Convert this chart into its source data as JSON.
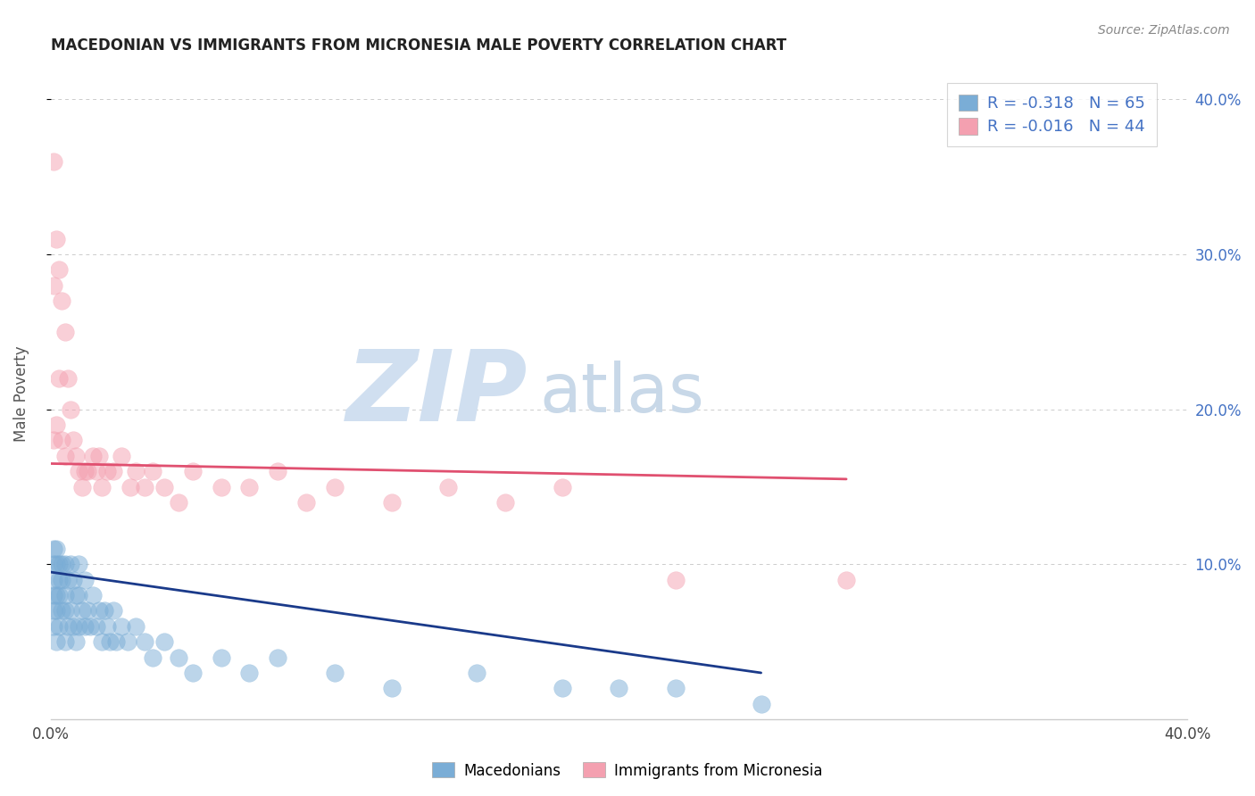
{
  "title": "MACEDONIAN VS IMMIGRANTS FROM MICRONESIA MALE POVERTY CORRELATION CHART",
  "source": "Source: ZipAtlas.com",
  "ylabel": "Male Poverty",
  "legend_label1": "Macedonians",
  "legend_label2": "Immigrants from Micronesia",
  "r1": -0.318,
  "n1": 65,
  "r2": -0.016,
  "n2": 44,
  "color_macedonian": "#7aadd6",
  "color_micronesia": "#f4a0b0",
  "color_macedonian_line": "#1a3a8a",
  "color_micronesia_line": "#e05070",
  "xlim": [
    0.0,
    0.4
  ],
  "ylim": [
    0.0,
    0.42
  ],
  "yticks": [
    0.1,
    0.2,
    0.3,
    0.4
  ],
  "ytick_labels": [
    "10.0%",
    "20.0%",
    "30.0%",
    "40.0%"
  ],
  "background_color": "#ffffff",
  "macedonian_x": [
    0.001,
    0.001,
    0.001,
    0.001,
    0.001,
    0.001,
    0.002,
    0.002,
    0.002,
    0.002,
    0.002,
    0.003,
    0.003,
    0.003,
    0.003,
    0.004,
    0.004,
    0.004,
    0.005,
    0.005,
    0.005,
    0.005,
    0.006,
    0.006,
    0.007,
    0.007,
    0.008,
    0.008,
    0.009,
    0.009,
    0.01,
    0.01,
    0.01,
    0.011,
    0.012,
    0.012,
    0.013,
    0.014,
    0.015,
    0.016,
    0.017,
    0.018,
    0.019,
    0.02,
    0.021,
    0.022,
    0.023,
    0.025,
    0.027,
    0.03,
    0.033,
    0.036,
    0.04,
    0.045,
    0.05,
    0.06,
    0.07,
    0.08,
    0.1,
    0.12,
    0.15,
    0.18,
    0.2,
    0.22,
    0.25
  ],
  "macedonian_y": [
    0.06,
    0.07,
    0.08,
    0.09,
    0.1,
    0.11,
    0.05,
    0.07,
    0.08,
    0.1,
    0.11,
    0.06,
    0.08,
    0.09,
    0.1,
    0.07,
    0.09,
    0.1,
    0.05,
    0.07,
    0.08,
    0.1,
    0.06,
    0.09,
    0.07,
    0.1,
    0.06,
    0.09,
    0.05,
    0.08,
    0.06,
    0.08,
    0.1,
    0.07,
    0.06,
    0.09,
    0.07,
    0.06,
    0.08,
    0.06,
    0.07,
    0.05,
    0.07,
    0.06,
    0.05,
    0.07,
    0.05,
    0.06,
    0.05,
    0.06,
    0.05,
    0.04,
    0.05,
    0.04,
    0.03,
    0.04,
    0.03,
    0.04,
    0.03,
    0.02,
    0.03,
    0.02,
    0.02,
    0.02,
    0.01
  ],
  "micronesia_x": [
    0.001,
    0.001,
    0.001,
    0.002,
    0.002,
    0.003,
    0.003,
    0.004,
    0.004,
    0.005,
    0.005,
    0.006,
    0.007,
    0.008,
    0.009,
    0.01,
    0.011,
    0.012,
    0.013,
    0.015,
    0.016,
    0.017,
    0.018,
    0.02,
    0.022,
    0.025,
    0.028,
    0.03,
    0.033,
    0.036,
    0.04,
    0.045,
    0.05,
    0.06,
    0.07,
    0.08,
    0.09,
    0.1,
    0.12,
    0.14,
    0.16,
    0.18,
    0.22,
    0.28
  ],
  "micronesia_y": [
    0.36,
    0.28,
    0.18,
    0.31,
    0.19,
    0.29,
    0.22,
    0.27,
    0.18,
    0.25,
    0.17,
    0.22,
    0.2,
    0.18,
    0.17,
    0.16,
    0.15,
    0.16,
    0.16,
    0.17,
    0.16,
    0.17,
    0.15,
    0.16,
    0.16,
    0.17,
    0.15,
    0.16,
    0.15,
    0.16,
    0.15,
    0.14,
    0.16,
    0.15,
    0.15,
    0.16,
    0.14,
    0.15,
    0.14,
    0.15,
    0.14,
    0.15,
    0.09,
    0.09
  ],
  "mac_trend_x": [
    0.0,
    0.25
  ],
  "mac_trend_y": [
    0.095,
    0.03
  ],
  "mic_trend_x": [
    0.0,
    0.28
  ],
  "mic_trend_y": [
    0.165,
    0.155
  ]
}
